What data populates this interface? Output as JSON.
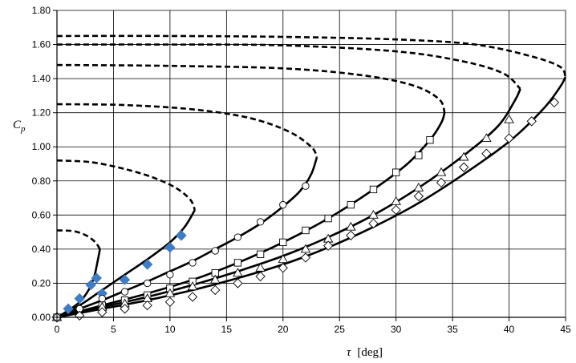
{
  "chart_data": {
    "type": "line",
    "title": "",
    "xlabel": "τ",
    "xunit": "[deg]",
    "ylabel": "C",
    "ylabel_sub": "p",
    "xlim": [
      0,
      45
    ],
    "ylim": [
      0,
      1.8
    ],
    "xticks": [
      "0",
      "5",
      "10",
      "15",
      "20",
      "25",
      "30",
      "35",
      "40",
      "45"
    ],
    "yticks": [
      "0.00",
      "0.20",
      "0.40",
      "0.60",
      "0.80",
      "1.00",
      "1.20",
      "1.40",
      "1.60",
      "1.80"
    ],
    "grid": true,
    "colors": {
      "line": "#000000",
      "marker_filled": "#3f7cc6",
      "marker_open": "#000000"
    },
    "solid_curves": [
      [
        [
          0,
          0
        ],
        [
          1,
          0.04
        ],
        [
          2,
          0.09
        ],
        [
          2.8,
          0.16
        ],
        [
          3.3,
          0.24
        ],
        [
          3.6,
          0.33
        ],
        [
          3.8,
          0.4
        ]
      ],
      [
        [
          0,
          0
        ],
        [
          2,
          0.07
        ],
        [
          4,
          0.16
        ],
        [
          6,
          0.25
        ],
        [
          8,
          0.34
        ],
        [
          10,
          0.44
        ],
        [
          11.3,
          0.53
        ],
        [
          12.2,
          0.63
        ]
      ],
      [
        [
          0,
          0
        ],
        [
          2,
          0.05
        ],
        [
          4,
          0.1
        ],
        [
          6,
          0.155
        ],
        [
          8,
          0.21
        ],
        [
          10,
          0.27
        ],
        [
          12,
          0.33
        ],
        [
          14,
          0.4
        ],
        [
          16,
          0.47
        ],
        [
          18,
          0.55
        ],
        [
          20,
          0.65
        ],
        [
          21.5,
          0.74
        ],
        [
          22.5,
          0.84
        ],
        [
          23,
          0.94
        ]
      ],
      [
        [
          0,
          0
        ],
        [
          4,
          0.07
        ],
        [
          8,
          0.14
        ],
        [
          12,
          0.22
        ],
        [
          16,
          0.32
        ],
        [
          20,
          0.44
        ],
        [
          24,
          0.58
        ],
        [
          28,
          0.75
        ],
        [
          31,
          0.9
        ],
        [
          33,
          1.04
        ],
        [
          34,
          1.14
        ],
        [
          34.3,
          1.2
        ]
      ],
      [
        [
          0,
          0
        ],
        [
          4,
          0.06
        ],
        [
          8,
          0.12
        ],
        [
          12,
          0.19
        ],
        [
          16,
          0.27
        ],
        [
          20,
          0.36
        ],
        [
          24,
          0.47
        ],
        [
          28,
          0.6
        ],
        [
          32,
          0.76
        ],
        [
          36,
          0.95
        ],
        [
          39,
          1.12
        ],
        [
          40.5,
          1.27
        ],
        [
          41,
          1.34
        ]
      ],
      [
        [
          0,
          0
        ],
        [
          4,
          0.05
        ],
        [
          8,
          0.1
        ],
        [
          12,
          0.16
        ],
        [
          16,
          0.23
        ],
        [
          20,
          0.31
        ],
        [
          24,
          0.41
        ],
        [
          28,
          0.53
        ],
        [
          32,
          0.67
        ],
        [
          36,
          0.84
        ],
        [
          40,
          1.03
        ],
        [
          43,
          1.22
        ],
        [
          44.5,
          1.35
        ],
        [
          45,
          1.41
        ]
      ]
    ],
    "dashed_curves": [
      [
        [
          0,
          0.51
        ],
        [
          1.5,
          0.505
        ],
        [
          2.6,
          0.48
        ],
        [
          3.4,
          0.44
        ],
        [
          3.8,
          0.4
        ]
      ],
      [
        [
          0,
          0.92
        ],
        [
          3,
          0.91
        ],
        [
          6,
          0.87
        ],
        [
          8.5,
          0.82
        ],
        [
          10.5,
          0.76
        ],
        [
          11.8,
          0.69
        ],
        [
          12.2,
          0.63
        ]
      ],
      [
        [
          0,
          1.25
        ],
        [
          6,
          1.245
        ],
        [
          12,
          1.22
        ],
        [
          17,
          1.17
        ],
        [
          20.5,
          1.09
        ],
        [
          22.5,
          1.0
        ],
        [
          23,
          0.94
        ]
      ],
      [
        [
          0,
          1.48
        ],
        [
          10,
          1.475
        ],
        [
          20,
          1.46
        ],
        [
          27,
          1.42
        ],
        [
          31.5,
          1.36
        ],
        [
          33.8,
          1.28
        ],
        [
          34.3,
          1.2
        ]
      ],
      [
        [
          0,
          1.6
        ],
        [
          10,
          1.6
        ],
        [
          20,
          1.595
        ],
        [
          30,
          1.56
        ],
        [
          36,
          1.5
        ],
        [
          39.5,
          1.43
        ],
        [
          41,
          1.34
        ]
      ],
      [
        [
          0,
          1.65
        ],
        [
          10,
          1.65
        ],
        [
          20,
          1.645
        ],
        [
          30,
          1.63
        ],
        [
          37,
          1.6
        ],
        [
          42,
          1.53
        ],
        [
          44.5,
          1.47
        ],
        [
          45,
          1.41
        ]
      ]
    ],
    "series": [
      {
        "marker": "diamond-filled",
        "points": [
          [
            0,
            0
          ],
          [
            1,
            0.05
          ],
          [
            2,
            0.11
          ],
          [
            3,
            0.19
          ],
          [
            3.5,
            0.23
          ],
          [
            4,
            0.14
          ],
          [
            6,
            0.22
          ],
          [
            8,
            0.31
          ],
          [
            10,
            0.41
          ],
          [
            11,
            0.48
          ]
        ]
      },
      {
        "marker": "circle",
        "points": [
          [
            0,
            0
          ],
          [
            2,
            0.05
          ],
          [
            4,
            0.11
          ],
          [
            6,
            0.15
          ],
          [
            8,
            0.2
          ],
          [
            10,
            0.25
          ],
          [
            12,
            0.32
          ],
          [
            14,
            0.39
          ],
          [
            16,
            0.47
          ],
          [
            18,
            0.56
          ],
          [
            20,
            0.66
          ],
          [
            22,
            0.77
          ]
        ]
      },
      {
        "marker": "square",
        "points": [
          [
            0,
            0
          ],
          [
            4,
            0.07
          ],
          [
            6,
            0.1
          ],
          [
            8,
            0.13
          ],
          [
            10,
            0.17
          ],
          [
            12,
            0.21
          ],
          [
            14,
            0.26
          ],
          [
            16,
            0.32
          ],
          [
            18,
            0.37
          ],
          [
            20,
            0.44
          ],
          [
            22,
            0.51
          ],
          [
            24,
            0.58
          ],
          [
            26,
            0.66
          ],
          [
            28,
            0.75
          ],
          [
            30,
            0.85
          ],
          [
            32,
            0.95
          ],
          [
            33,
            1.04
          ]
        ]
      },
      {
        "marker": "triangle",
        "points": [
          [
            0,
            0
          ],
          [
            4,
            0.06
          ],
          [
            6,
            0.08
          ],
          [
            8,
            0.11
          ],
          [
            10,
            0.14
          ],
          [
            12,
            0.18
          ],
          [
            14,
            0.22
          ],
          [
            16,
            0.26
          ],
          [
            18,
            0.29
          ],
          [
            20,
            0.34
          ],
          [
            22,
            0.4
          ],
          [
            24,
            0.46
          ],
          [
            26,
            0.53
          ],
          [
            28,
            0.6
          ],
          [
            30,
            0.68
          ],
          [
            32,
            0.76
          ],
          [
            34,
            0.85
          ],
          [
            36,
            0.94
          ],
          [
            38,
            1.05
          ],
          [
            40,
            1.16
          ]
        ]
      },
      {
        "marker": "diamond",
        "points": [
          [
            0,
            0
          ],
          [
            2,
            0.01
          ],
          [
            4,
            0.03
          ],
          [
            6,
            0.05
          ],
          [
            8,
            0.07
          ],
          [
            10,
            0.09
          ],
          [
            12,
            0.12
          ],
          [
            14,
            0.16
          ],
          [
            16,
            0.2
          ],
          [
            18,
            0.24
          ],
          [
            20,
            0.29
          ],
          [
            22,
            0.35
          ],
          [
            24,
            0.42
          ],
          [
            26,
            0.48
          ],
          [
            28,
            0.55
          ],
          [
            30,
            0.63
          ],
          [
            32,
            0.71
          ],
          [
            34,
            0.79
          ],
          [
            36,
            0.88
          ],
          [
            38,
            0.96
          ],
          [
            40,
            1.05
          ],
          [
            42,
            1.15
          ],
          [
            44,
            1.26
          ]
        ]
      }
    ]
  }
}
